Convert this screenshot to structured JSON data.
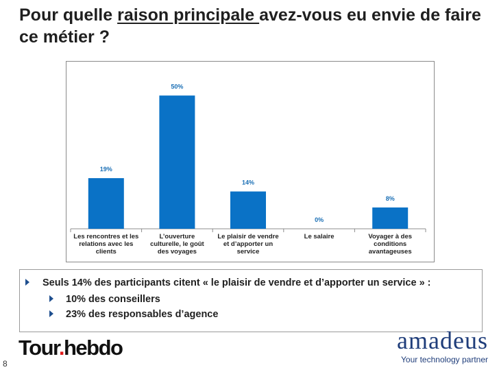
{
  "slide": {
    "title_part1": "Pour quelle ",
    "title_underlined": "raison principale ",
    "title_part2": "avez-vous eu envie de faire ce métier ?",
    "page_number": "8"
  },
  "chart_data": {
    "type": "bar",
    "categories": [
      [
        "Les rencontres et les",
        "relations avec les",
        "clients"
      ],
      [
        "L’ouverture",
        "culturelle, le goût",
        "des voyages"
      ],
      [
        "Le plaisir de vendre",
        "et d’apporter un",
        "service"
      ],
      [
        "Le salaire"
      ],
      [
        "Voyager à des",
        "conditions",
        "avantageuses"
      ]
    ],
    "values": [
      19,
      50,
      14,
      0,
      8
    ],
    "value_labels": [
      "19%",
      "50%",
      "14%",
      "0%",
      "8%"
    ],
    "ylim": [
      0,
      55
    ],
    "grid": false,
    "legend": "none",
    "bar_color": "#0a72c6",
    "label_color": "#1a6fb5"
  },
  "bullets": {
    "main": "Seuls 14% des participants citent « le plaisir de vendre et d’apporter un service » :",
    "sub1": "10% des conseillers",
    "sub2": "23% des responsables d’agence"
  },
  "logos": {
    "tour_part1": "Tour",
    "tour_dot": ".",
    "tour_part2": "hebdo",
    "amadeus_brand": "amadeus",
    "amadeus_tagline": "Your technology partner"
  },
  "icons": {
    "bullet": "chevron-right-icon"
  }
}
